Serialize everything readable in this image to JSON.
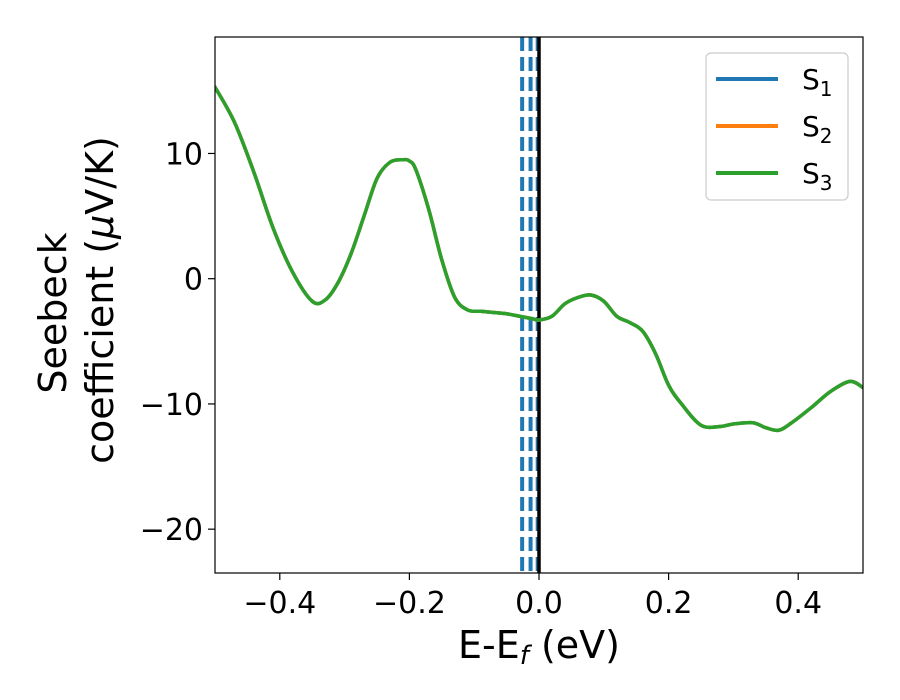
{
  "chart_data": {
    "type": "line",
    "title": "",
    "xlabel": {
      "main": "E-E",
      "sub": "f",
      "unit": " (eV)"
    },
    "ylabel": {
      "line1": "Seebeck",
      "line2": "coefficient  (",
      "mu": "μ",
      "line2_end": "V/K)"
    },
    "xlim": [
      -0.5,
      0.5
    ],
    "ylim": [
      -23.5,
      19.3
    ],
    "x_ticks": [
      -0.4,
      -0.2,
      0.0,
      0.2,
      0.4
    ],
    "x_tick_labels": [
      "−0.4",
      "−0.2",
      "0.0",
      "0.2",
      "0.4"
    ],
    "y_ticks": [
      -20,
      -10,
      0,
      10
    ],
    "y_tick_labels": [
      "−20",
      "−10",
      "0",
      "10"
    ],
    "grid": false,
    "legend_position": "top-right",
    "series": [
      {
        "name": "S",
        "sub": "1",
        "color": "#1f77b4"
      },
      {
        "name": "S",
        "sub": "2",
        "color": "#ff7f0e"
      },
      {
        "name": "S",
        "sub": "3",
        "color": "#2ca02c"
      }
    ],
    "curve": {
      "x": [
        -0.5,
        -0.47,
        -0.44,
        -0.41,
        -0.38,
        -0.35,
        -0.33,
        -0.31,
        -0.29,
        -0.27,
        -0.25,
        -0.23,
        -0.21,
        -0.2,
        -0.19,
        -0.17,
        -0.15,
        -0.13,
        -0.11,
        -0.09,
        -0.07,
        -0.05,
        -0.03,
        -0.01,
        0.0,
        0.02,
        0.04,
        0.06,
        0.08,
        0.1,
        0.12,
        0.14,
        0.16,
        0.18,
        0.2,
        0.22,
        0.25,
        0.28,
        0.3,
        0.33,
        0.35,
        0.37,
        0.39,
        0.42,
        0.45,
        0.48,
        0.5
      ],
      "y": [
        15.3,
        12.5,
        8.5,
        4.0,
        0.5,
        -1.8,
        -1.7,
        -0.3,
        2.0,
        5.0,
        8.0,
        9.3,
        9.5,
        9.4,
        8.7,
        5.5,
        1.5,
        -1.5,
        -2.5,
        -2.6,
        -2.7,
        -2.8,
        -3.0,
        -3.2,
        -3.3,
        -3.0,
        -2.0,
        -1.5,
        -1.3,
        -1.8,
        -3.0,
        -3.5,
        -4.2,
        -6.0,
        -8.5,
        -10.0,
        -11.7,
        -11.8,
        -11.6,
        -11.5,
        -11.9,
        -12.1,
        -11.5,
        -10.3,
        -9.0,
        -8.2,
        -8.7
      ]
    },
    "vlines": [
      {
        "x": -0.026,
        "color": "#1f77b4",
        "style": "dashed"
      },
      {
        "x": -0.013,
        "color": "#1f77b4",
        "style": "dashed"
      },
      {
        "x": -0.002,
        "color": "#1f77b4",
        "style": "dashed"
      },
      {
        "x": 0.0,
        "color": "#000000",
        "style": "solid"
      }
    ]
  }
}
